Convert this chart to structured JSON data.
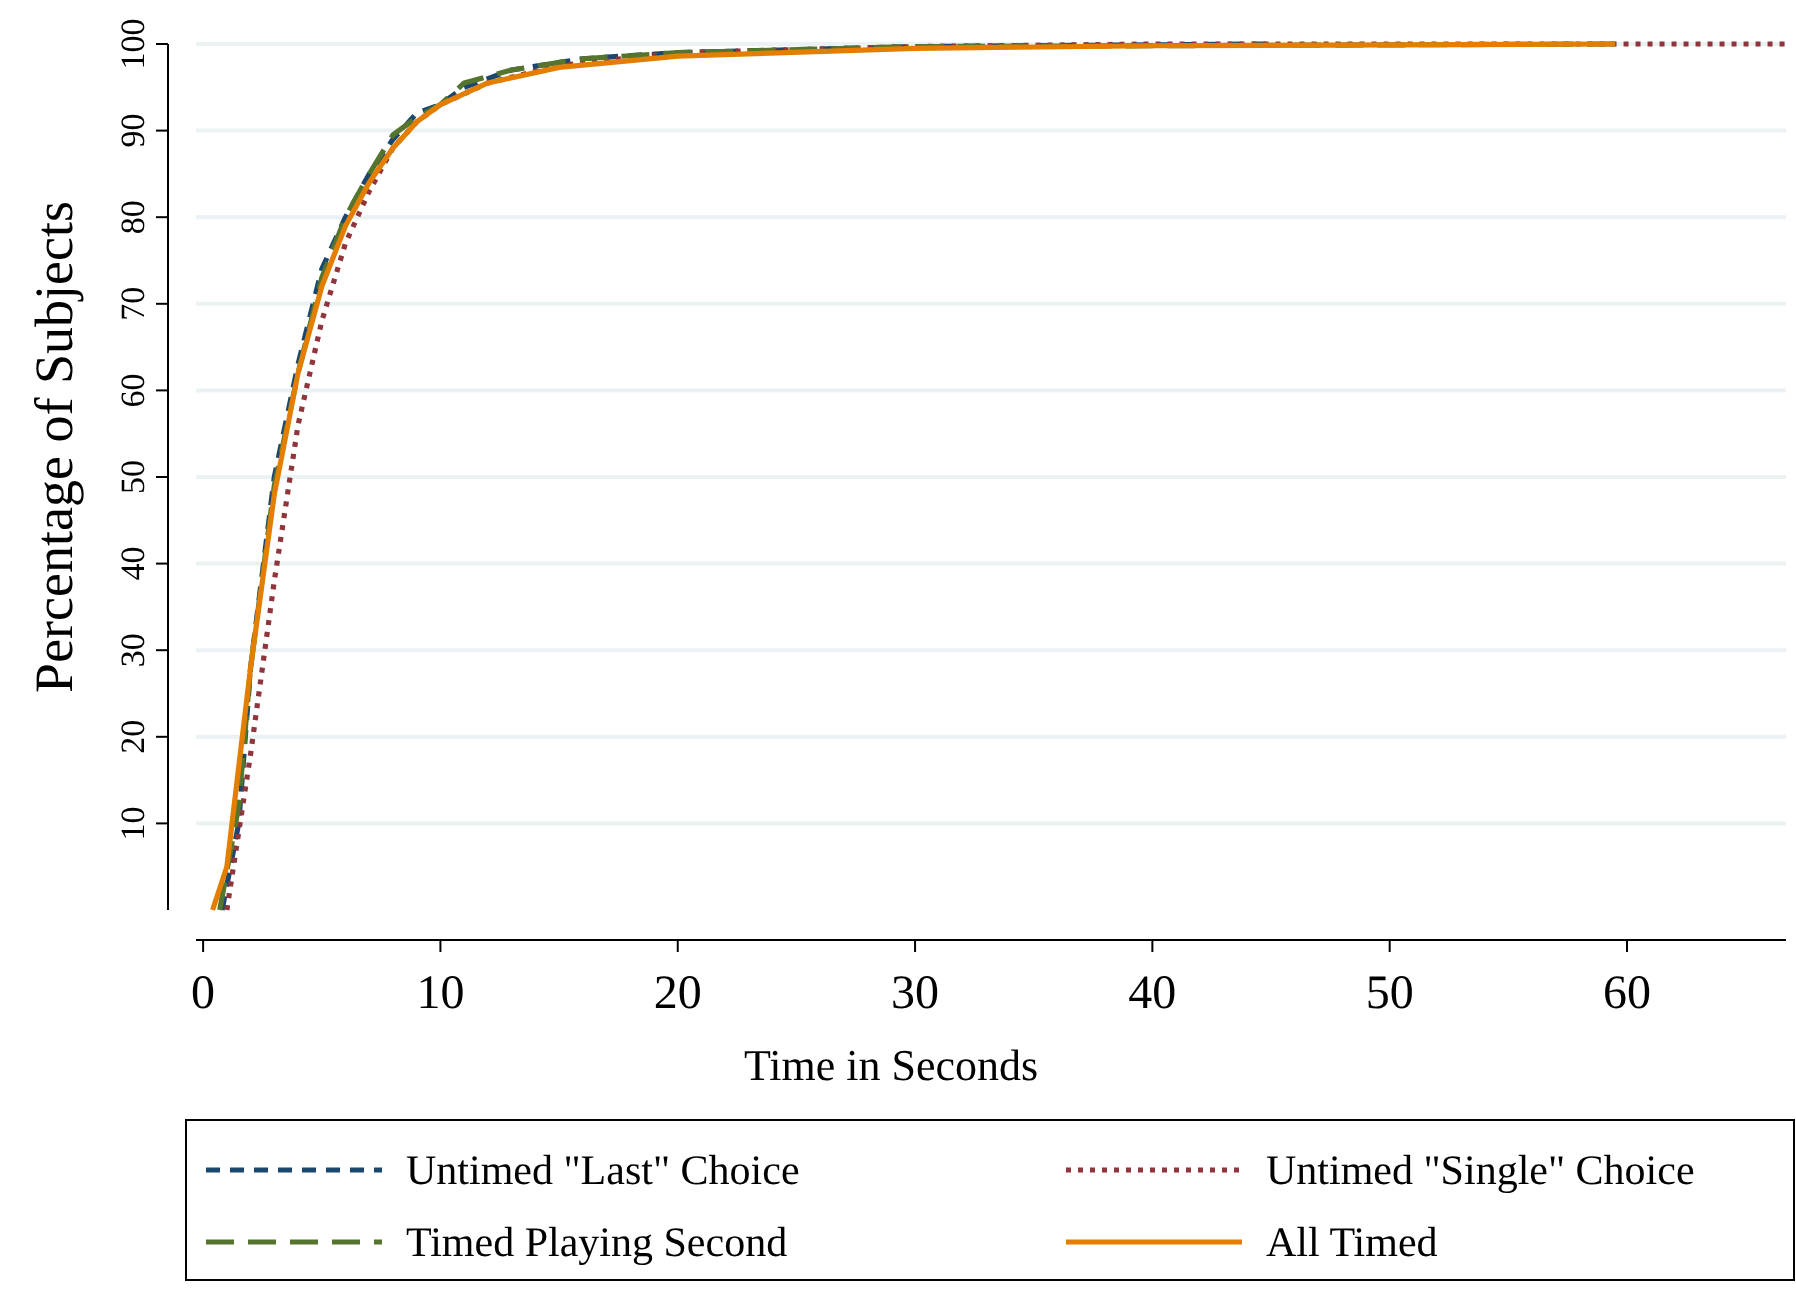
{
  "chart_data": {
    "type": "line",
    "xlabel": "Time in Seconds",
    "ylabel": "Percentage of Subjects",
    "xlim": [
      -0.3,
      66.7
    ],
    "ylim": [
      0,
      100
    ],
    "xticks": [
      0,
      10,
      20,
      30,
      40,
      50,
      60
    ],
    "yticks": [
      10,
      20,
      30,
      40,
      50,
      60,
      70,
      80,
      90,
      100
    ],
    "grid": "y",
    "legend": "bottom",
    "series": [
      {
        "name": "Untimed \"Last\" Choice",
        "color": "#1a476f",
        "line_style": "dashed",
        "x": [
          0.8,
          1.5,
          2,
          3,
          4,
          5,
          6,
          7,
          8,
          9,
          10,
          11,
          13,
          16,
          20,
          30,
          45
        ],
        "values": [
          0,
          10,
          28,
          50,
          63,
          74,
          80,
          85,
          89,
          92,
          93,
          95,
          97,
          98.3,
          99,
          99.7,
          100
        ]
      },
      {
        "name": "Untimed \"Single\" Choice",
        "color": "#90353b",
        "line_style": "dotted",
        "x": [
          1,
          2,
          3,
          4,
          5,
          6,
          7,
          8,
          9,
          10,
          12,
          15,
          20,
          30,
          40,
          66.7
        ],
        "values": [
          0,
          18,
          38,
          56,
          68,
          77,
          83,
          88,
          91,
          93,
          95.5,
          97.5,
          99,
          99.7,
          100,
          100
        ]
      },
      {
        "name": "Timed Playing Second",
        "color": "#55752f",
        "line_style": "longdash",
        "x": [
          0.7,
          1.5,
          2,
          3,
          4,
          5,
          6,
          7,
          8,
          9,
          10,
          11,
          13,
          16,
          20,
          30,
          59.5
        ],
        "values": [
          0,
          12,
          28,
          49,
          62,
          73,
          80,
          85,
          89.5,
          91.5,
          93,
          95.5,
          97,
          98.3,
          99,
          99.7,
          100
        ]
      },
      {
        "name": "All Timed",
        "color": "#e37e00",
        "line_style": "solid",
        "x": [
          0.4,
          1,
          2,
          3,
          4,
          5,
          6,
          7,
          8,
          9,
          10,
          12,
          15,
          20,
          30,
          40,
          59.5
        ],
        "values": [
          0,
          5,
          28,
          48,
          62,
          72,
          79,
          84,
          88,
          91,
          93,
          95.5,
          97.3,
          98.6,
          99.5,
          99.8,
          100
        ]
      }
    ]
  }
}
